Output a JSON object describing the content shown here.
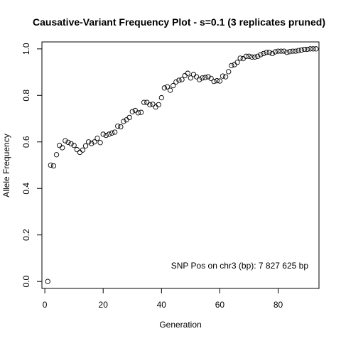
{
  "chart_data": {
    "type": "scatter",
    "title": "Causative-Variant Frequency Plot - s=0.1 (3 replicates pruned)",
    "xlabel": "Generation",
    "ylabel": "Allele Frequency",
    "xlim": [
      -1,
      94
    ],
    "ylim": [
      -0.03,
      1.03
    ],
    "xticks": [
      0,
      20,
      40,
      60,
      80
    ],
    "xtick_labels": [
      "0",
      "20",
      "40",
      "60",
      "80"
    ],
    "yticks": [
      0.0,
      0.2,
      0.4,
      0.6,
      0.8,
      1.0
    ],
    "ytick_labels": [
      "0.0",
      "0.2",
      "0.4",
      "0.6",
      "0.8",
      "1.0"
    ],
    "grid": false,
    "annotation": "SNP Pos on chr3 (bp): 7 827 625 bp",
    "series": [
      {
        "marker": "open-circle",
        "x": [
          1,
          2,
          3,
          4,
          5,
          6,
          7,
          8,
          9,
          10,
          11,
          12,
          13,
          14,
          15,
          16,
          17,
          18,
          19,
          20,
          21,
          22,
          23,
          24,
          25,
          26,
          27,
          28,
          29,
          30,
          31,
          32,
          33,
          34,
          35,
          36,
          37,
          38,
          39,
          40,
          41,
          42,
          43,
          44,
          45,
          46,
          47,
          48,
          49,
          50,
          51,
          52,
          53,
          54,
          55,
          56,
          57,
          58,
          59,
          60,
          61,
          62,
          63,
          64,
          65,
          66,
          67,
          68,
          69,
          70,
          71,
          72,
          73,
          74,
          75,
          76,
          77,
          78,
          79,
          80,
          81,
          82,
          83,
          84,
          85,
          86,
          87,
          88,
          89,
          90,
          91,
          92,
          93
        ],
        "y": [
          0.0,
          0.5,
          0.497,
          0.545,
          0.585,
          0.575,
          0.605,
          0.598,
          0.592,
          0.585,
          0.567,
          0.555,
          0.565,
          0.583,
          0.6,
          0.593,
          0.6,
          0.616,
          0.597,
          0.633,
          0.628,
          0.633,
          0.638,
          0.642,
          0.668,
          0.665,
          0.688,
          0.695,
          0.705,
          0.73,
          0.735,
          0.725,
          0.727,
          0.77,
          0.77,
          0.76,
          0.762,
          0.75,
          0.76,
          0.79,
          0.832,
          0.837,
          0.822,
          0.842,
          0.858,
          0.865,
          0.868,
          0.885,
          0.895,
          0.875,
          0.89,
          0.88,
          0.868,
          0.875,
          0.877,
          0.88,
          0.873,
          0.86,
          0.863,
          0.862,
          0.883,
          0.88,
          0.902,
          0.928,
          0.932,
          0.942,
          0.96,
          0.958,
          0.968,
          0.968,
          0.965,
          0.965,
          0.968,
          0.975,
          0.98,
          0.985,
          0.985,
          0.98,
          0.987,
          0.99,
          0.99,
          0.99,
          0.985,
          0.988,
          0.99,
          0.99,
          0.993,
          0.995,
          0.998,
          0.998,
          1.0,
          1.0,
          1.0
        ]
      }
    ]
  }
}
